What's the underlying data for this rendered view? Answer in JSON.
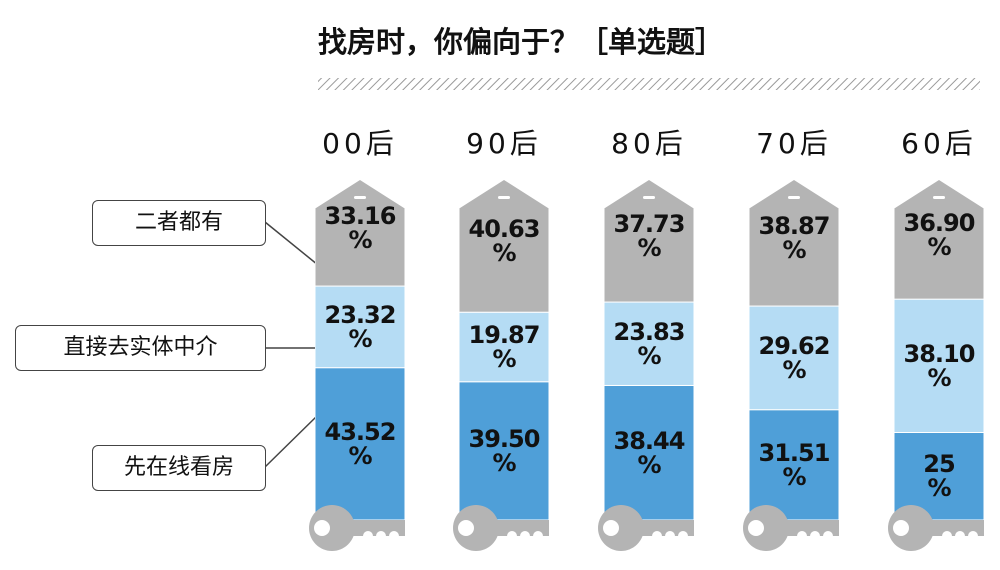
{
  "chart_data": {
    "type": "stacked-bar",
    "title": "找房时，你偏向于？［单选题］",
    "categories": [
      "00后",
      "90后",
      "80后",
      "70后",
      "60后"
    ],
    "series": [
      {
        "name": "先在线看房",
        "color": "#4f9fd8",
        "values": [
          43.52,
          39.5,
          38.44,
          31.51,
          25
        ],
        "value_labels": [
          "43.52\n%",
          "39.50\n%",
          "38.44\n%",
          "31.51\n%",
          "25\n%"
        ]
      },
      {
        "name": "直接去实体中介",
        "color": "#b5dcf4",
        "values": [
          23.32,
          19.87,
          23.83,
          29.62,
          38.1
        ],
        "value_labels": [
          "23.32\n%",
          "19.87\n%",
          "23.83\n%",
          "29.62\n%",
          "38.10\n%"
        ]
      },
      {
        "name": "二者都有",
        "color": "#b4b4b4",
        "values": [
          33.16,
          40.63,
          37.73,
          38.87,
          36.9
        ],
        "value_labels": [
          "33.16\n%",
          "40.63\n%",
          "37.73\n%",
          "38.87\n%",
          "36.90\n%"
        ]
      }
    ]
  }
}
